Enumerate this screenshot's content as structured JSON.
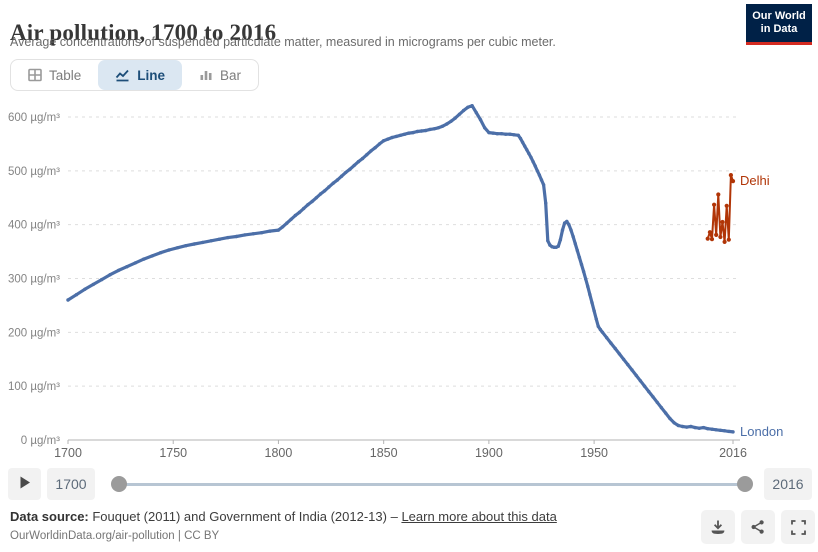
{
  "header": {
    "title": "Air pollution, 1700 to 2016",
    "subtitle": "Average concentrations of suspended particulate matter, measured in micrograms per cubic meter.",
    "logo": {
      "line1": "Our World",
      "line2": "in Data"
    }
  },
  "tabs": [
    {
      "label": "Table",
      "icon": "table-icon",
      "active": false
    },
    {
      "label": "Line",
      "icon": "line-chart-icon",
      "active": true
    },
    {
      "label": "Bar",
      "icon": "bar-chart-icon",
      "active": false
    }
  ],
  "chart_data": {
    "type": "line",
    "title": "Air pollution, 1700 to 2016",
    "unit": "µg/m³",
    "xlabel": "",
    "ylabel": "µg/m³",
    "xlim": [
      1700,
      2016
    ],
    "ylim": [
      0,
      650
    ],
    "grid": true,
    "legend_position": "line-end-labels",
    "yticks": [
      {
        "value": 0,
        "label": "0 µg/m³"
      },
      {
        "value": 100,
        "label": "100 µg/m³"
      },
      {
        "value": 200,
        "label": "200 µg/m³"
      },
      {
        "value": 300,
        "label": "300 µg/m³"
      },
      {
        "value": 400,
        "label": "400 µg/m³"
      },
      {
        "value": 500,
        "label": "500 µg/m³"
      },
      {
        "value": 600,
        "label": "600 µg/m³"
      }
    ],
    "xticks": [
      {
        "value": 1700,
        "label": "1700"
      },
      {
        "value": 1750,
        "label": "1750"
      },
      {
        "value": 1800,
        "label": "1800"
      },
      {
        "value": 1850,
        "label": "1850"
      },
      {
        "value": 1900,
        "label": "1900"
      },
      {
        "value": 1950,
        "label": "1950"
      },
      {
        "value": 2016,
        "label": "2016"
      }
    ],
    "series": [
      {
        "name": "London",
        "color": "#4c6fa8",
        "points": [
          [
            1700,
            260
          ],
          [
            1704,
            270
          ],
          [
            1708,
            280
          ],
          [
            1712,
            289
          ],
          [
            1716,
            298
          ],
          [
            1720,
            307
          ],
          [
            1724,
            315
          ],
          [
            1728,
            322
          ],
          [
            1732,
            329
          ],
          [
            1736,
            336
          ],
          [
            1740,
            342
          ],
          [
            1744,
            348
          ],
          [
            1748,
            353
          ],
          [
            1752,
            357
          ],
          [
            1756,
            361
          ],
          [
            1760,
            364
          ],
          [
            1764,
            367
          ],
          [
            1768,
            370
          ],
          [
            1772,
            373
          ],
          [
            1776,
            376
          ],
          [
            1780,
            378
          ],
          [
            1784,
            381
          ],
          [
            1788,
            383
          ],
          [
            1792,
            385
          ],
          [
            1796,
            388
          ],
          [
            1800,
            390
          ],
          [
            1802,
            396
          ],
          [
            1804,
            403
          ],
          [
            1806,
            410
          ],
          [
            1808,
            417
          ],
          [
            1810,
            423
          ],
          [
            1812,
            430
          ],
          [
            1814,
            437
          ],
          [
            1816,
            443
          ],
          [
            1818,
            450
          ],
          [
            1820,
            457
          ],
          [
            1822,
            463
          ],
          [
            1824,
            470
          ],
          [
            1826,
            477
          ],
          [
            1828,
            483
          ],
          [
            1830,
            490
          ],
          [
            1832,
            497
          ],
          [
            1834,
            503
          ],
          [
            1836,
            510
          ],
          [
            1838,
            517
          ],
          [
            1840,
            523
          ],
          [
            1842,
            530
          ],
          [
            1844,
            537
          ],
          [
            1846,
            543
          ],
          [
            1848,
            550
          ],
          [
            1850,
            556
          ],
          [
            1852,
            559
          ],
          [
            1854,
            562
          ],
          [
            1856,
            564
          ],
          [
            1858,
            566
          ],
          [
            1860,
            568
          ],
          [
            1862,
            570
          ],
          [
            1864,
            571
          ],
          [
            1866,
            573
          ],
          [
            1868,
            574
          ],
          [
            1870,
            575
          ],
          [
            1872,
            577
          ],
          [
            1874,
            578
          ],
          [
            1876,
            580
          ],
          [
            1878,
            583
          ],
          [
            1880,
            587
          ],
          [
            1882,
            592
          ],
          [
            1884,
            598
          ],
          [
            1886,
            605
          ],
          [
            1888,
            612
          ],
          [
            1890,
            618
          ],
          [
            1892,
            621
          ],
          [
            1894,
            608
          ],
          [
            1896,
            595
          ],
          [
            1898,
            580
          ],
          [
            1900,
            571
          ],
          [
            1902,
            570
          ],
          [
            1904,
            569
          ],
          [
            1906,
            569
          ],
          [
            1908,
            568
          ],
          [
            1910,
            568
          ],
          [
            1912,
            567
          ],
          [
            1914,
            566
          ],
          [
            1915,
            560
          ],
          [
            1916,
            553
          ],
          [
            1917,
            546
          ],
          [
            1918,
            539
          ],
          [
            1919,
            532
          ],
          [
            1920,
            525
          ],
          [
            1921,
            517
          ],
          [
            1922,
            509
          ],
          [
            1923,
            500
          ],
          [
            1924,
            492
          ],
          [
            1925,
            483
          ],
          [
            1926,
            474
          ],
          [
            1927,
            440
          ],
          [
            1928,
            370
          ],
          [
            1929,
            362
          ],
          [
            1930,
            359
          ],
          [
            1931,
            358
          ],
          [
            1932,
            358
          ],
          [
            1933,
            360
          ],
          [
            1934,
            372
          ],
          [
            1935,
            390
          ],
          [
            1936,
            403
          ],
          [
            1937,
            406
          ],
          [
            1938,
            400
          ],
          [
            1939,
            390
          ],
          [
            1940,
            378
          ],
          [
            1941,
            365
          ],
          [
            1942,
            352
          ],
          [
            1943,
            339
          ],
          [
            1944,
            326
          ],
          [
            1945,
            313
          ],
          [
            1946,
            299
          ],
          [
            1947,
            285
          ],
          [
            1948,
            270
          ],
          [
            1949,
            255
          ],
          [
            1950,
            240
          ],
          [
            1951,
            225
          ],
          [
            1952,
            211
          ],
          [
            1953,
            205
          ],
          [
            1954,
            200
          ],
          [
            1956,
            190
          ],
          [
            1958,
            180
          ],
          [
            1960,
            170
          ],
          [
            1962,
            160
          ],
          [
            1964,
            150
          ],
          [
            1966,
            140
          ],
          [
            1968,
            130
          ],
          [
            1970,
            120
          ],
          [
            1972,
            110
          ],
          [
            1974,
            100
          ],
          [
            1976,
            90
          ],
          [
            1978,
            80
          ],
          [
            1980,
            70
          ],
          [
            1982,
            60
          ],
          [
            1984,
            50
          ],
          [
            1986,
            40
          ],
          [
            1988,
            32
          ],
          [
            1990,
            27
          ],
          [
            1992,
            25
          ],
          [
            1994,
            24
          ],
          [
            1996,
            25
          ],
          [
            1998,
            23
          ],
          [
            2000,
            22
          ],
          [
            2002,
            23
          ],
          [
            2004,
            21
          ],
          [
            2006,
            20
          ],
          [
            2008,
            19
          ],
          [
            2010,
            18
          ],
          [
            2012,
            17
          ],
          [
            2014,
            16
          ],
          [
            2016,
            15
          ]
        ]
      },
      {
        "name": "Delhi",
        "color": "#b13507",
        "points": [
          [
            2004,
            374
          ],
          [
            2005,
            386
          ],
          [
            2006,
            373
          ],
          [
            2007,
            437
          ],
          [
            2008,
            381
          ],
          [
            2009,
            456
          ],
          [
            2010,
            377
          ],
          [
            2011,
            405
          ],
          [
            2012,
            368
          ],
          [
            2013,
            435
          ],
          [
            2014,
            372
          ],
          [
            2015,
            492
          ],
          [
            2016,
            481
          ]
        ]
      }
    ]
  },
  "timeline": {
    "play_icon": "play-icon",
    "start_year": "1700",
    "end_year": "2016"
  },
  "footer": {
    "datasource_label": "Data source:",
    "datasource_text": " Fouquet (2011) and Government of India (2012-13) – ",
    "link_text": "Learn more about this data",
    "citation": "OurWorldinData.org/air-pollution | CC BY",
    "icons": [
      "download-icon",
      "share-icon",
      "fullscreen-icon"
    ]
  },
  "colors": {
    "london": "#4c6fa8",
    "delhi": "#b13507",
    "tab_active_bg": "#dbe7f2",
    "tab_active_text": "#1d4e79",
    "logo_bg": "#002147",
    "logo_red": "#d42b21",
    "grid": "#dedede",
    "axis": "#b3b3b3"
  }
}
